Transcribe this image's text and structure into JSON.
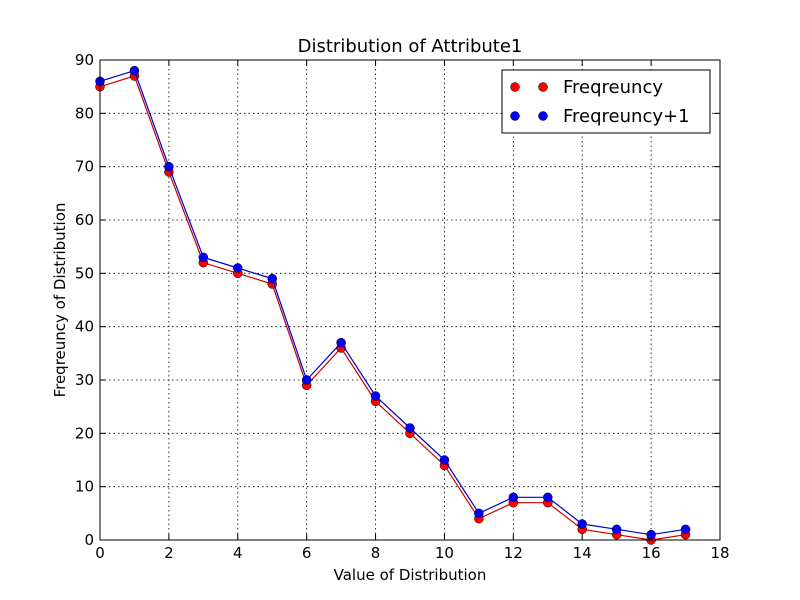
{
  "chart_data": {
    "type": "line",
    "title": "Distribution of Attribute1",
    "xlabel": "Value of Distribution",
    "ylabel": "Freqreuncy of Distribution",
    "xlim": [
      0,
      18
    ],
    "ylim": [
      0,
      90
    ],
    "xticks": [
      0,
      2,
      4,
      6,
      8,
      10,
      12,
      14,
      16,
      18
    ],
    "yticks": [
      0,
      10,
      20,
      30,
      40,
      50,
      60,
      70,
      80,
      90
    ],
    "grid": true,
    "legend_position": "top-right",
    "x": [
      0,
      1,
      2,
      3,
      4,
      5,
      6,
      7,
      8,
      9,
      10,
      11,
      12,
      13,
      14,
      15,
      16,
      17
    ],
    "series": [
      {
        "name": "Freqreuncy",
        "color": "#ff0000",
        "line_color": "#cc0000",
        "values": [
          85,
          87,
          69,
          52,
          50,
          48,
          29,
          36,
          26,
          20,
          14,
          4,
          7,
          7,
          2,
          1,
          0,
          1
        ]
      },
      {
        "name": "Freqreuncy+1",
        "color": "#0000ff",
        "line_color": "#0000cc",
        "values": [
          86,
          88,
          70,
          53,
          51,
          49,
          30,
          37,
          27,
          21,
          15,
          5,
          8,
          8,
          3,
          2,
          1,
          2
        ]
      }
    ]
  }
}
